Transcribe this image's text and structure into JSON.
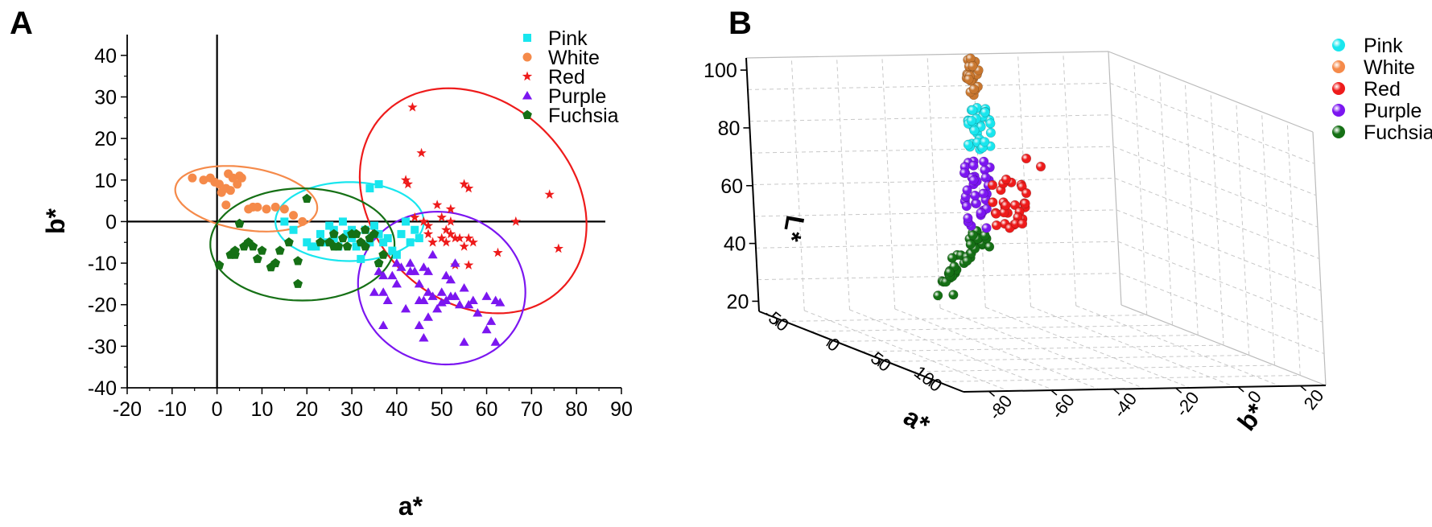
{
  "colors": {
    "Pink": "#19e6ee",
    "White": "#f58a4a",
    "Red": "#ee1b1b",
    "Purple": "#7b16f0",
    "Fuchsia": "#157015",
    "Brown3d": "#c9772f"
  },
  "chart_data": [
    {
      "panel": "A",
      "type": "scatter",
      "xlabel": "a*",
      "ylabel": "b*",
      "xlim": [
        -20,
        90
      ],
      "ylim": [
        -40,
        45
      ],
      "x_ticks": [
        -20,
        -10,
        0,
        10,
        20,
        30,
        40,
        50,
        60,
        70,
        80,
        90
      ],
      "y_ticks": [
        -40,
        -30,
        -20,
        -10,
        0,
        10,
        20,
        30,
        40
      ],
      "legend_position": "top-right",
      "series": [
        {
          "name": "Pink",
          "marker": "square",
          "points": [
            [
              15,
              0
            ],
            [
              17,
              -2
            ],
            [
              20,
              -5
            ],
            [
              21,
              -6
            ],
            [
              22,
              -6
            ],
            [
              23,
              -3
            ],
            [
              24,
              -5
            ],
            [
              25,
              -1
            ],
            [
              26,
              -4
            ],
            [
              27,
              -6
            ],
            [
              28,
              0
            ],
            [
              29,
              -3
            ],
            [
              30,
              -4
            ],
            [
              31,
              -6
            ],
            [
              32,
              -9
            ],
            [
              33,
              -2
            ],
            [
              34,
              -5
            ],
            [
              35,
              -1
            ],
            [
              36,
              -3
            ],
            [
              37,
              -5
            ],
            [
              38,
              -4
            ],
            [
              39,
              -7
            ],
            [
              40,
              -8
            ],
            [
              41,
              -3
            ],
            [
              42,
              0
            ],
            [
              43,
              -5
            ],
            [
              44,
              -2
            ],
            [
              45,
              -4
            ],
            [
              34,
              8
            ],
            [
              36,
              9
            ],
            [
              30,
              -2
            ],
            [
              26,
              -2
            ]
          ]
        },
        {
          "name": "White",
          "marker": "circle",
          "points": [
            [
              -5.5,
              10.5
            ],
            [
              -3,
              10
            ],
            [
              -1.5,
              10.5
            ],
            [
              -0.5,
              9.5
            ],
            [
              0.5,
              9
            ],
            [
              1,
              7
            ],
            [
              2,
              8
            ],
            [
              3,
              7.5
            ],
            [
              2.5,
              11.5
            ],
            [
              3.5,
              10.5
            ],
            [
              4.5,
              9
            ],
            [
              5,
              11
            ],
            [
              5.5,
              10.5
            ],
            [
              8,
              3.5
            ],
            [
              9,
              3.5
            ],
            [
              11,
              3
            ],
            [
              13,
              3.5
            ],
            [
              15,
              3
            ],
            [
              17,
              1.5
            ],
            [
              19,
              0
            ],
            [
              2,
              4
            ],
            [
              7,
              3
            ]
          ]
        },
        {
          "name": "Red",
          "marker": "star",
          "points": [
            [
              43.5,
              27.5
            ],
            [
              45.5,
              16.5
            ],
            [
              42,
              10
            ],
            [
              42.5,
              9
            ],
            [
              55,
              9
            ],
            [
              56,
              8
            ],
            [
              74,
              6.5
            ],
            [
              49,
              4
            ],
            [
              52,
              3
            ],
            [
              44,
              1
            ],
            [
              46,
              0
            ],
            [
              47,
              -1
            ],
            [
              50,
              1
            ],
            [
              51,
              -2
            ],
            [
              52,
              0
            ],
            [
              53,
              -4
            ],
            [
              50,
              -4
            ],
            [
              48,
              -5
            ],
            [
              51,
              -5
            ],
            [
              52,
              -3
            ],
            [
              55,
              -6
            ],
            [
              56,
              -4
            ],
            [
              47,
              -3
            ],
            [
              53,
              -10.5
            ],
            [
              56,
              -10.5
            ],
            [
              62.5,
              -7.5
            ],
            [
              66.5,
              0
            ],
            [
              76,
              -6.5
            ],
            [
              48,
              -5
            ],
            [
              54,
              -4
            ],
            [
              57,
              -5
            ]
          ]
        },
        {
          "name": "Purple",
          "marker": "triangle",
          "points": [
            [
              36,
              -12
            ],
            [
              37,
              -13
            ],
            [
              35,
              -17
            ],
            [
              37,
              -17
            ],
            [
              38,
              -19
            ],
            [
              39,
              -13
            ],
            [
              40,
              -15
            ],
            [
              41,
              -11
            ],
            [
              43,
              -10
            ],
            [
              43,
              -12
            ],
            [
              45,
              -15
            ],
            [
              46,
              -11
            ],
            [
              47,
              -12
            ],
            [
              47,
              -17
            ],
            [
              46,
              -19
            ],
            [
              48,
              -18
            ],
            [
              49,
              -21
            ],
            [
              50,
              -19.5
            ],
            [
              51,
              -19
            ],
            [
              52,
              -18
            ],
            [
              53,
              -18
            ],
            [
              54,
              -20
            ],
            [
              55,
              -16
            ],
            [
              56,
              -20
            ],
            [
              57,
              -19
            ],
            [
              58,
              -22
            ],
            [
              60,
              -18
            ],
            [
              61,
              -24
            ],
            [
              62,
              -19
            ],
            [
              63,
              -19.5
            ],
            [
              62,
              -29
            ],
            [
              45,
              -19
            ],
            [
              45,
              -25
            ],
            [
              46,
              -28
            ],
            [
              47,
              -23
            ],
            [
              50,
              -17
            ],
            [
              51,
              -13
            ],
            [
              52,
              -14
            ],
            [
              53,
              -10
            ],
            [
              48,
              -8
            ],
            [
              42,
              -21
            ],
            [
              37,
              -25
            ],
            [
              55,
              -29
            ],
            [
              60,
              -26
            ],
            [
              44,
              -12
            ],
            [
              40,
              -10
            ]
          ]
        },
        {
          "name": "Fuchsia",
          "marker": "pentagon",
          "points": [
            [
              0.5,
              -10.5
            ],
            [
              3,
              -8
            ],
            [
              4,
              -8
            ],
            [
              4,
              -7
            ],
            [
              5,
              -0.5
            ],
            [
              6,
              -6
            ],
            [
              7,
              -5
            ],
            [
              8,
              -6
            ],
            [
              9,
              -9
            ],
            [
              10,
              -7
            ],
            [
              12,
              -11
            ],
            [
              13,
              -10
            ],
            [
              14,
              -7
            ],
            [
              16,
              -5
            ],
            [
              18,
              -9.5
            ],
            [
              18,
              -15
            ],
            [
              20,
              5.5
            ],
            [
              23,
              -5
            ],
            [
              25,
              -5
            ],
            [
              26,
              -3
            ],
            [
              27,
              -6
            ],
            [
              28,
              -4
            ],
            [
              29,
              -6
            ],
            [
              30,
              -3
            ],
            [
              31,
              -3
            ],
            [
              32,
              -5
            ],
            [
              33,
              -6
            ],
            [
              33,
              -2
            ],
            [
              34,
              -4
            ],
            [
              35,
              -3
            ],
            [
              36,
              -10
            ],
            [
              37,
              -8
            ],
            [
              26,
              -6
            ]
          ]
        }
      ],
      "ellipses": [
        {
          "series": "Pink",
          "cx": 29.5,
          "cy": 0,
          "rx": 16.5,
          "ry": 9.5,
          "angle": 0
        },
        {
          "series": "White",
          "cx": 6.5,
          "cy": 5.5,
          "rx": 16,
          "ry": 7.5,
          "angle": -10
        },
        {
          "series": "Red",
          "cx": 57,
          "cy": 5,
          "rx": 23,
          "ry": 29,
          "angle": 36
        },
        {
          "series": "Purple",
          "cx": 50,
          "cy": -16,
          "rx": 19,
          "ry": 18,
          "angle": -38
        },
        {
          "series": "Fuchsia",
          "cx": 19,
          "cy": -5.5,
          "rx": 20.5,
          "ry": 13.5,
          "angle": 0
        }
      ]
    },
    {
      "panel": "B",
      "type": "scatter3d",
      "xlabel": "a*",
      "ylabel": "b*",
      "zlabel": "L*",
      "a_ticks": [
        "-50",
        "0",
        "50",
        "100"
      ],
      "b_ticks": [
        "-80",
        "-60",
        "-40",
        "-20",
        "0",
        "20"
      ],
      "L_ticks": [
        "20",
        "40",
        "60",
        "80",
        "100"
      ],
      "legend_position": "top-right",
      "series_names": [
        "Pink",
        "White",
        "Red",
        "Purple",
        "Fuchsia"
      ]
    }
  ]
}
